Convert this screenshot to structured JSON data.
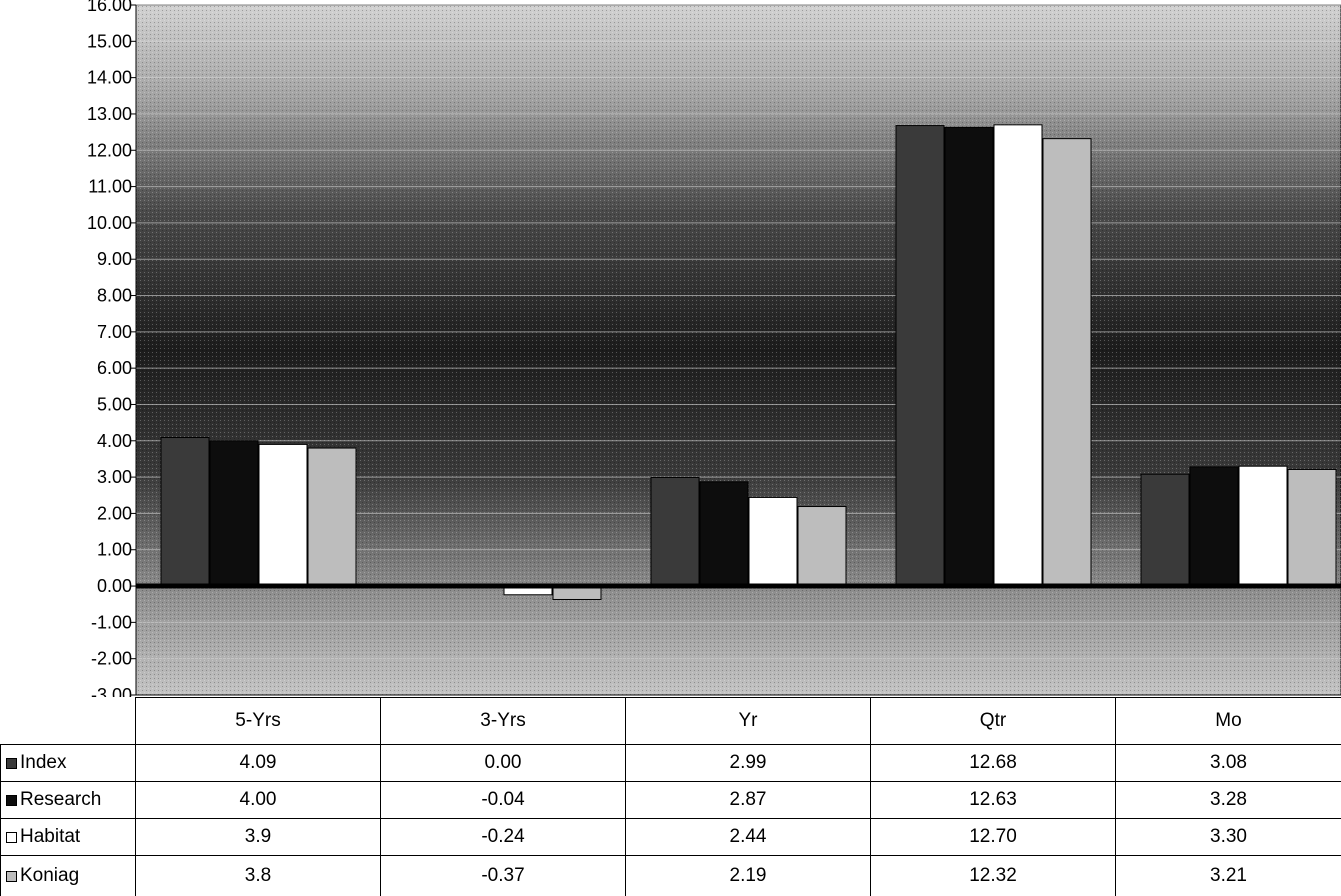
{
  "chart_data": {
    "type": "bar",
    "title": "",
    "xlabel": "",
    "ylabel": "",
    "ylim": [
      -3,
      16
    ],
    "y_ticks": [
      "16.00",
      "15.00",
      "14.00",
      "13.00",
      "12.00",
      "11.00",
      "10.00",
      "9.00",
      "8.00",
      "7.00",
      "6.00",
      "5.00",
      "4.00",
      "3.00",
      "2.00",
      "1.00",
      "0.00",
      "-1.00",
      "-2.00",
      "-3.00"
    ],
    "grid": true,
    "legend": "data-table",
    "categories": [
      "5-Yrs",
      "3-Yrs",
      "Yr",
      "Qtr",
      "Mo"
    ],
    "series": [
      {
        "name": "Index",
        "color": "#3a3a3a",
        "values": [
          4.09,
          0.0,
          2.99,
          12.68,
          3.08
        ],
        "labels": [
          "4.09",
          "0.00",
          "2.99",
          "12.68",
          "3.08"
        ]
      },
      {
        "name": "Research",
        "color": "#0d0d0d",
        "values": [
          4.0,
          -0.04,
          2.87,
          12.63,
          3.28
        ],
        "labels": [
          "4.00",
          "-0.04",
          "2.87",
          "12.63",
          "3.28"
        ]
      },
      {
        "name": "Habitat",
        "color": "#ffffff",
        "values": [
          3.9,
          -0.24,
          2.44,
          12.7,
          3.3
        ],
        "labels": [
          "3.9",
          "-0.24",
          "2.44",
          "12.70",
          "3.30"
        ]
      },
      {
        "name": "Koniag",
        "color": "#bdbdbd",
        "values": [
          3.8,
          -0.37,
          2.19,
          12.32,
          3.21
        ],
        "labels": [
          "3.8",
          "-0.37",
          "2.19",
          "12.32",
          "3.21"
        ]
      }
    ]
  }
}
